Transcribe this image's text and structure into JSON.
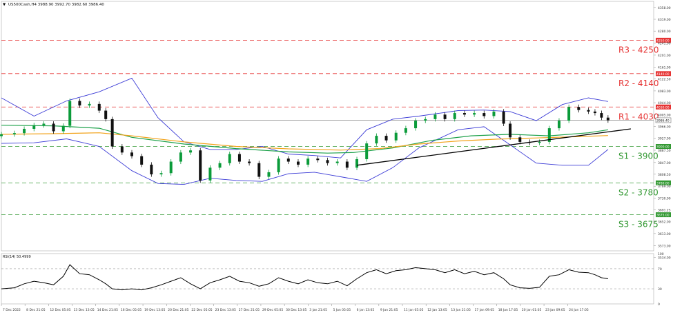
{
  "header": {
    "symbol_line": "US500Cash,H4   3988.90 3992.70 3982.60 3986.40"
  },
  "rsi_label": "RSI(14) 50.4999",
  "colors": {
    "resistance": "#e63333",
    "support": "#339933",
    "bull": "#0b9b3a",
    "bear": "#111111",
    "bollinger": "#3b3bd6",
    "ma_fast": "#1da14a",
    "ma_slow": "#f2a31b",
    "trendline": "#000000",
    "current_price": "#555555"
  },
  "chart_data": [
    {
      "type": "candlestick",
      "ylim": [
        3556.0,
        4378.0
      ],
      "y_ticks": [
        "4358.00",
        "4319.00",
        "4280.00",
        "4250.00",
        "4241.00",
        "4201.00",
        "4161.00",
        "4140.00",
        "4122.50",
        "4083.00",
        "4044.00",
        "4030.00",
        "4005.00",
        "3986.40",
        "3966.00",
        "3927.00",
        "3900.00",
        "3887.50",
        "3847.00",
        "3808.50",
        "3780.00",
        "3769.00",
        "3730.00",
        "3691.25",
        "3675.00",
        "3652.00",
        "3613.00",
        "3573.00",
        "3534.00"
      ],
      "x_ticks": [
        "7 Dec 2022",
        "8 Dec 21:05",
        "12 Dec 05:05",
        "13 Dec 13:05",
        "14 Dec 21:05",
        "16 Dec 05:05",
        "19 Dec 13:05",
        "20 Dec 21:05",
        "22 Dec 05:05",
        "23 Dec 13:05",
        "27 Dec 21:05",
        "29 Dec 05:05",
        "30 Dec 13:05",
        "3 Jan 21:05",
        "5 Jan 05:05",
        "6 Jan 13:05",
        "9 Jan 21:05",
        "11 Jan 05:05",
        "12 Jan 13:05",
        "13 Jan 21:05",
        "17 Jan 09:05",
        "18 Jan 17:05",
        "20 Jan 01:05",
        "23 Jan 09:05",
        "24 Jan 17:05"
      ],
      "levels": [
        {
          "name": "R3",
          "label": "R3 - 4250",
          "value": 4250.0,
          "kind": "resistance"
        },
        {
          "name": "R2",
          "label": "R2 - 4140",
          "value": 4140.0,
          "kind": "resistance"
        },
        {
          "name": "R1",
          "label": "R1 - 4030",
          "value": 4030.0,
          "kind": "resistance"
        },
        {
          "name": "S1",
          "label": "S1 - 3900",
          "value": 3900.0,
          "kind": "support"
        },
        {
          "name": "S2",
          "label": "S2 - 3780",
          "value": 3780.0,
          "kind": "support"
        },
        {
          "name": "S3",
          "label": "S3 - 3675",
          "value": 3675.0,
          "kind": "support"
        }
      ],
      "current_price": {
        "value": 3986.4,
        "label": "3986.40"
      },
      "trendline": [
        [
          0.545,
          3838
        ],
        [
          0.965,
          3958
        ]
      ],
      "closes": [
        [
          0.0,
          3940
        ],
        [
          0.02,
          3944
        ],
        [
          0.035,
          3958
        ],
        [
          0.05,
          3970
        ],
        [
          0.065,
          3975
        ],
        [
          0.08,
          3950
        ],
        [
          0.095,
          3968
        ],
        [
          0.105,
          4050
        ],
        [
          0.12,
          4035
        ],
        [
          0.135,
          4040
        ],
        [
          0.15,
          4018
        ],
        [
          0.16,
          3990
        ],
        [
          0.17,
          3900
        ],
        [
          0.185,
          3880
        ],
        [
          0.2,
          3868
        ],
        [
          0.215,
          3840
        ],
        [
          0.23,
          3808
        ],
        [
          0.245,
          3812
        ],
        [
          0.26,
          3850
        ],
        [
          0.275,
          3880
        ],
        [
          0.29,
          3887
        ],
        [
          0.305,
          3788
        ],
        [
          0.32,
          3830
        ],
        [
          0.335,
          3845
        ],
        [
          0.35,
          3875
        ],
        [
          0.365,
          3850
        ],
        [
          0.38,
          3845
        ],
        [
          0.395,
          3800
        ],
        [
          0.41,
          3815
        ],
        [
          0.425,
          3860
        ],
        [
          0.44,
          3850
        ],
        [
          0.455,
          3840
        ],
        [
          0.47,
          3860
        ],
        [
          0.485,
          3855
        ],
        [
          0.5,
          3845
        ],
        [
          0.515,
          3850
        ],
        [
          0.53,
          3830
        ],
        [
          0.545,
          3858
        ],
        [
          0.56,
          3910
        ],
        [
          0.575,
          3935
        ],
        [
          0.59,
          3920
        ],
        [
          0.605,
          3945
        ],
        [
          0.62,
          3960
        ],
        [
          0.635,
          3985
        ],
        [
          0.65,
          3990
        ],
        [
          0.665,
          4005
        ],
        [
          0.68,
          3990
        ],
        [
          0.695,
          4010
        ],
        [
          0.71,
          4005
        ],
        [
          0.725,
          4010
        ],
        [
          0.74,
          4000
        ],
        [
          0.755,
          4015
        ],
        [
          0.77,
          3975
        ],
        [
          0.78,
          3930
        ],
        [
          0.795,
          3915
        ],
        [
          0.81,
          3912
        ],
        [
          0.825,
          3915
        ],
        [
          0.84,
          3960
        ],
        [
          0.855,
          3985
        ],
        [
          0.87,
          4030
        ],
        [
          0.885,
          4020
        ],
        [
          0.9,
          4015
        ],
        [
          0.91,
          4010
        ],
        [
          0.92,
          3995
        ],
        [
          0.93,
          3986
        ]
      ],
      "bb_upper": [
        [
          0,
          4060
        ],
        [
          0.05,
          4000
        ],
        [
          0.1,
          4050
        ],
        [
          0.15,
          4080
        ],
        [
          0.2,
          4125
        ],
        [
          0.24,
          3995
        ],
        [
          0.28,
          3915
        ],
        [
          0.32,
          3890
        ],
        [
          0.36,
          3890
        ],
        [
          0.4,
          3900
        ],
        [
          0.44,
          3875
        ],
        [
          0.48,
          3870
        ],
        [
          0.52,
          3862
        ],
        [
          0.56,
          3955
        ],
        [
          0.6,
          3990
        ],
        [
          0.64,
          4000
        ],
        [
          0.7,
          4018
        ],
        [
          0.74,
          4020
        ],
        [
          0.78,
          4015
        ],
        [
          0.82,
          3985
        ],
        [
          0.86,
          4038
        ],
        [
          0.9,
          4060
        ],
        [
          0.93,
          4048
        ]
      ],
      "bb_lower": [
        [
          0,
          3910
        ],
        [
          0.05,
          3912
        ],
        [
          0.1,
          3925
        ],
        [
          0.15,
          3900
        ],
        [
          0.2,
          3820
        ],
        [
          0.24,
          3778
        ],
        [
          0.28,
          3775
        ],
        [
          0.32,
          3795
        ],
        [
          0.36,
          3788
        ],
        [
          0.4,
          3785
        ],
        [
          0.44,
          3810
        ],
        [
          0.48,
          3815
        ],
        [
          0.52,
          3800
        ],
        [
          0.56,
          3785
        ],
        [
          0.6,
          3830
        ],
        [
          0.64,
          3895
        ],
        [
          0.7,
          3955
        ],
        [
          0.74,
          3965
        ],
        [
          0.78,
          3905
        ],
        [
          0.82,
          3845
        ],
        [
          0.86,
          3838
        ],
        [
          0.9,
          3838
        ],
        [
          0.93,
          3890
        ]
      ],
      "ma_fast": [
        [
          0,
          3970
        ],
        [
          0.08,
          3968
        ],
        [
          0.15,
          3960
        ],
        [
          0.2,
          3930
        ],
        [
          0.28,
          3908
        ],
        [
          0.36,
          3893
        ],
        [
          0.44,
          3882
        ],
        [
          0.5,
          3878
        ],
        [
          0.54,
          3880
        ],
        [
          0.6,
          3895
        ],
        [
          0.66,
          3920
        ],
        [
          0.72,
          3935
        ],
        [
          0.78,
          3940
        ],
        [
          0.84,
          3935
        ],
        [
          0.9,
          3945
        ],
        [
          0.93,
          3955
        ]
      ],
      "ma_slow": [
        [
          0,
          3940
        ],
        [
          0.08,
          3942
        ],
        [
          0.15,
          3945
        ],
        [
          0.2,
          3935
        ],
        [
          0.28,
          3915
        ],
        [
          0.36,
          3900
        ],
        [
          0.44,
          3892
        ],
        [
          0.52,
          3888
        ],
        [
          0.58,
          3893
        ],
        [
          0.64,
          3908
        ],
        [
          0.7,
          3918
        ],
        [
          0.76,
          3924
        ],
        [
          0.82,
          3928
        ],
        [
          0.88,
          3932
        ],
        [
          0.93,
          3936
        ]
      ]
    },
    {
      "type": "line",
      "name": "RSI(14)",
      "ylim": [
        0,
        100
      ],
      "y_ticks": [
        "100",
        "70",
        "30",
        "0"
      ],
      "levels": [
        70,
        30
      ],
      "values": [
        [
          0.0,
          30
        ],
        [
          0.02,
          32
        ],
        [
          0.035,
          40
        ],
        [
          0.05,
          45
        ],
        [
          0.065,
          42
        ],
        [
          0.08,
          38
        ],
        [
          0.095,
          55
        ],
        [
          0.105,
          78
        ],
        [
          0.12,
          60
        ],
        [
          0.135,
          58
        ],
        [
          0.15,
          48
        ],
        [
          0.16,
          40
        ],
        [
          0.17,
          30
        ],
        [
          0.185,
          28
        ],
        [
          0.2,
          30
        ],
        [
          0.215,
          28
        ],
        [
          0.23,
          32
        ],
        [
          0.245,
          38
        ],
        [
          0.26,
          45
        ],
        [
          0.275,
          52
        ],
        [
          0.29,
          40
        ],
        [
          0.305,
          30
        ],
        [
          0.32,
          42
        ],
        [
          0.335,
          48
        ],
        [
          0.35,
          55
        ],
        [
          0.365,
          45
        ],
        [
          0.38,
          42
        ],
        [
          0.395,
          35
        ],
        [
          0.41,
          40
        ],
        [
          0.425,
          52
        ],
        [
          0.44,
          45
        ],
        [
          0.455,
          40
        ],
        [
          0.47,
          48
        ],
        [
          0.485,
          42
        ],
        [
          0.5,
          40
        ],
        [
          0.515,
          45
        ],
        [
          0.53,
          36
        ],
        [
          0.545,
          50
        ],
        [
          0.56,
          62
        ],
        [
          0.575,
          68
        ],
        [
          0.59,
          60
        ],
        [
          0.605,
          66
        ],
        [
          0.62,
          68
        ],
        [
          0.635,
          72
        ],
        [
          0.65,
          70
        ],
        [
          0.665,
          68
        ],
        [
          0.68,
          62
        ],
        [
          0.695,
          68
        ],
        [
          0.71,
          60
        ],
        [
          0.725,
          65
        ],
        [
          0.74,
          58
        ],
        [
          0.755,
          62
        ],
        [
          0.77,
          50
        ],
        [
          0.78,
          38
        ],
        [
          0.795,
          32
        ],
        [
          0.81,
          31
        ],
        [
          0.825,
          33
        ],
        [
          0.84,
          55
        ],
        [
          0.855,
          58
        ],
        [
          0.87,
          68
        ],
        [
          0.885,
          63
        ],
        [
          0.9,
          62
        ],
        [
          0.91,
          58
        ],
        [
          0.92,
          52
        ],
        [
          0.93,
          50
        ]
      ]
    }
  ]
}
